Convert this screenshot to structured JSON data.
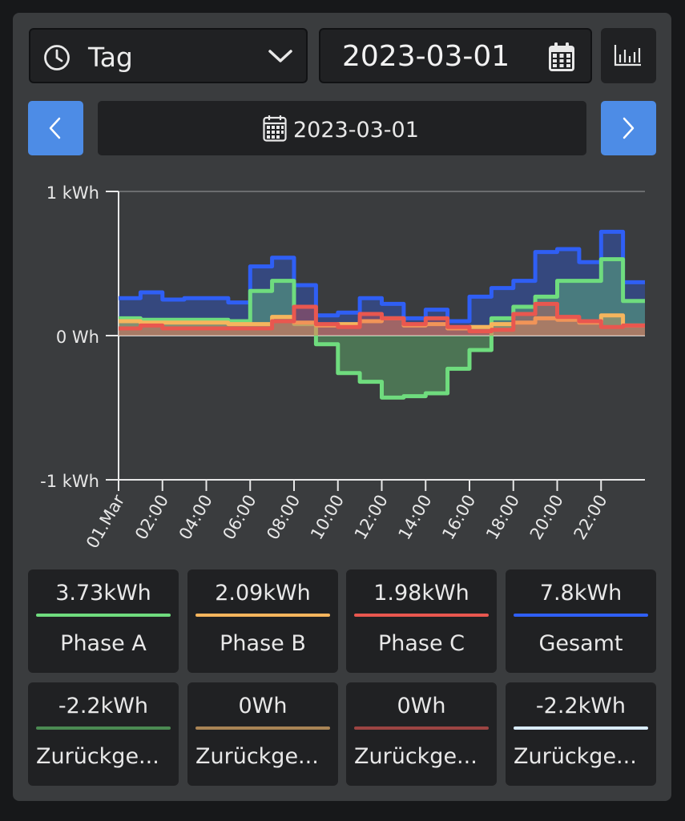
{
  "period_select": {
    "label": "Tag",
    "icon": "clock-icon"
  },
  "date_input": {
    "value": "2023-03-01",
    "icon": "calendar-icon"
  },
  "date_bar": {
    "label": "2023-03-01"
  },
  "colors": {
    "phase_a": "#6fdc7e",
    "phase_b": "#f6b55d",
    "phase_c": "#e9574f",
    "total": "#2f5ff5",
    "returned_a": "#4b8a52",
    "returned_b": "#a98455",
    "returned_c": "#9c4442",
    "returned_total": "#d9ecff",
    "nav_button": "#4d8ce6"
  },
  "chart_data": {
    "type": "area",
    "ylabels": [
      "1 kWh",
      "0 Wh",
      "-1 kWh"
    ],
    "ylim": [
      -1,
      1
    ],
    "x_ticks": [
      "01.Mar",
      "02:00",
      "04:00",
      "06:00",
      "08:00",
      "10:00",
      "12:00",
      "14:00",
      "16:00",
      "18:00",
      "20:00",
      "22:00"
    ],
    "grid": "top line only",
    "step_interval_hours": 1,
    "series": [
      {
        "key": "total",
        "values": [
          0.26,
          0.3,
          0.25,
          0.26,
          0.26,
          0.23,
          0.48,
          0.54,
          0.35,
          0.14,
          0.16,
          0.26,
          0.22,
          0.12,
          0.18,
          0.1,
          0.27,
          0.33,
          0.38,
          0.58,
          0.6,
          0.51,
          0.72,
          0.37
        ]
      },
      {
        "key": "phase_a",
        "values": [
          0.12,
          0.11,
          0.11,
          0.11,
          0.11,
          0.1,
          0.31,
          0.38,
          0.08,
          -0.06,
          -0.26,
          -0.32,
          -0.43,
          -0.42,
          -0.4,
          -0.23,
          -0.1,
          0.12,
          0.2,
          0.27,
          0.38,
          0.38,
          0.53,
          0.24
        ]
      },
      {
        "key": "phase_b",
        "values": [
          0.1,
          0.09,
          0.09,
          0.09,
          0.09,
          0.08,
          0.08,
          0.13,
          0.09,
          0.07,
          0.08,
          0.1,
          0.12,
          0.07,
          0.08,
          0.05,
          0.06,
          0.08,
          0.09,
          0.12,
          0.11,
          0.09,
          0.14,
          0.07
        ]
      },
      {
        "key": "phase_c",
        "values": [
          0.05,
          0.07,
          0.05,
          0.05,
          0.05,
          0.05,
          0.05,
          0.1,
          0.2,
          0.08,
          0.06,
          0.15,
          0.12,
          0.08,
          0.12,
          0.06,
          0.03,
          0.04,
          0.15,
          0.22,
          0.13,
          0.1,
          0.06,
          0.07
        ]
      }
    ]
  },
  "summary_cards": [
    {
      "value": "3.73kWh",
      "label": "Phase A",
      "color_key": "phase_a"
    },
    {
      "value": "2.09kWh",
      "label": "Phase B",
      "color_key": "phase_b"
    },
    {
      "value": "1.98kWh",
      "label": "Phase C",
      "color_key": "phase_c"
    },
    {
      "value": "7.8kWh",
      "label": "Gesamt",
      "color_key": "total"
    },
    {
      "value": "-2.2kWh",
      "label": "Zurückge...",
      "color_key": "returned_a"
    },
    {
      "value": "0Wh",
      "label": "Zurückge...",
      "color_key": "returned_b"
    },
    {
      "value": "0Wh",
      "label": "Zurückge...",
      "color_key": "returned_c"
    },
    {
      "value": "-2.2kWh",
      "label": "Zurückge...",
      "color_key": "returned_total"
    }
  ]
}
